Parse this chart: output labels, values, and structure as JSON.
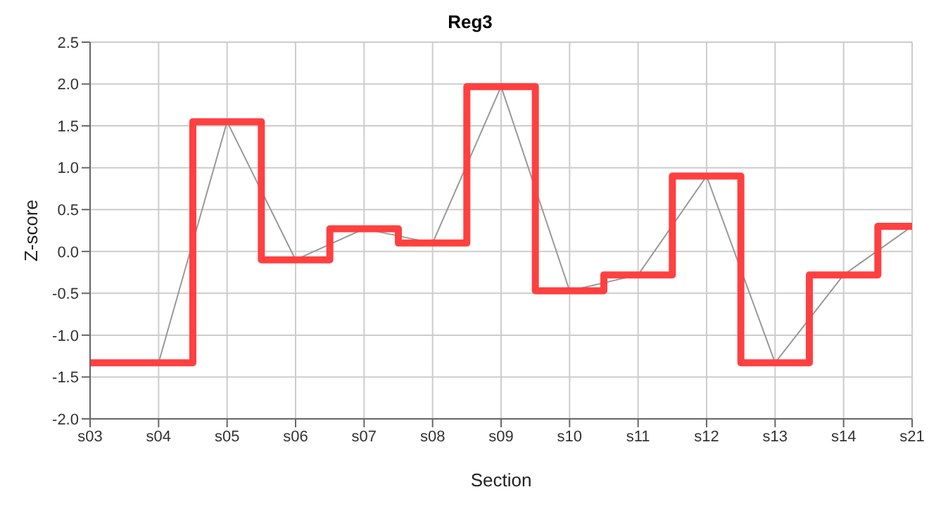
{
  "chart_data": {
    "type": "line",
    "title": "Reg3",
    "xlabel": "Section",
    "ylabel": "Z-score",
    "categories": [
      "s03",
      "s04",
      "s05",
      "s06",
      "s07",
      "s08",
      "s09",
      "s10",
      "s11",
      "s12",
      "s13",
      "s14",
      "s21"
    ],
    "series": [
      {
        "color": "#999999",
        "values": [
          -1.33,
          -1.33,
          1.55,
          -0.1,
          0.27,
          0.1,
          1.97,
          -0.47,
          -0.28,
          0.9,
          -1.33,
          -0.28,
          0.3
        ]
      },
      {
        "type": "step",
        "color": "#ff4040",
        "values": [
          -1.33,
          -1.33,
          1.55,
          -0.1,
          0.27,
          0.1,
          1.97,
          -0.47,
          -0.28,
          0.9,
          -1.33,
          -0.28,
          0.3
        ]
      }
    ],
    "ylim": [
      -2,
      2.5
    ],
    "yticks": [
      {
        "value": -2,
        "label": "-2.0"
      },
      {
        "value": -1.5,
        "label": "-1.5"
      },
      {
        "value": -1,
        "label": "-1.0"
      },
      {
        "value": -0.5,
        "label": "-0.5"
      },
      {
        "value": 0,
        "label": "0.0"
      },
      {
        "value": 0.5,
        "label": "0.5"
      },
      {
        "value": 1,
        "label": "1.0"
      },
      {
        "value": 1.5,
        "label": "1.5"
      },
      {
        "value": 2,
        "label": "2.0"
      },
      {
        "value": 2.5,
        "label": "2.5"
      }
    ],
    "grid": true,
    "legend": false,
    "marker": "none"
  }
}
